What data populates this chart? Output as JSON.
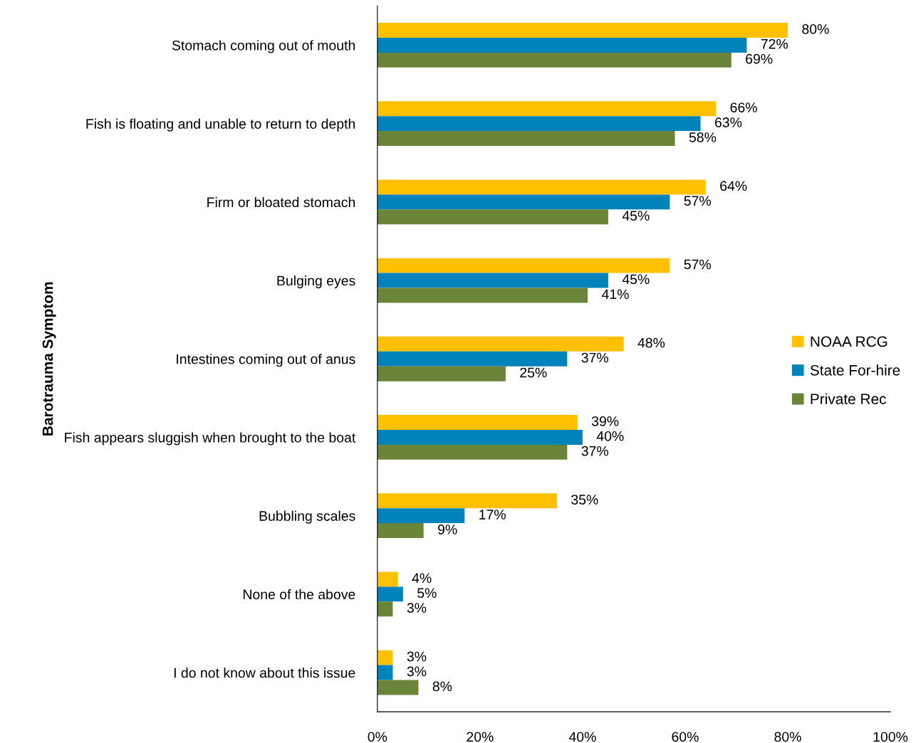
{
  "chart_data": {
    "type": "bar",
    "orientation": "horizontal",
    "ylabel": "Barotrauma Symptom",
    "categories": [
      "Stomach coming out of mouth",
      "Fish is floating and unable to return to depth",
      "Firm or bloated stomach",
      "Bulging eyes",
      "Intestines coming out of anus",
      "Fish appears sluggish when brought to the boat",
      "Bubbling scales",
      "None of the above",
      "I do not know about this issue"
    ],
    "series": [
      {
        "name": "NOAA RCG",
        "color": "#ffc000",
        "values": [
          80,
          66,
          64,
          57,
          48,
          39,
          35,
          4,
          3
        ],
        "value_labels": [
          "80%",
          "66%",
          "64%",
          "57%",
          "48%",
          "39%",
          "35%",
          "4%",
          "3%"
        ]
      },
      {
        "name": "State For-hire",
        "color": "#0082ba",
        "values": [
          72,
          63,
          57,
          45,
          37,
          40,
          17,
          5,
          3
        ],
        "value_labels": [
          "72%",
          "63%",
          "57%",
          "45%",
          "37%",
          "40%",
          "17%",
          "5%",
          "3%"
        ]
      },
      {
        "name": "Private Rec",
        "color": "#6a843a",
        "values": [
          69,
          58,
          45,
          41,
          25,
          37,
          9,
          3,
          8
        ],
        "value_labels": [
          "69%",
          "58%",
          "45%",
          "41%",
          "25%",
          "37%",
          "9%",
          "3%",
          "8%"
        ]
      }
    ],
    "xlim": [
      0,
      100
    ],
    "xticks": [
      {
        "value": 0,
        "label": "0%"
      },
      {
        "value": 20,
        "label": "20%"
      },
      {
        "value": 40,
        "label": "40%"
      },
      {
        "value": 60,
        "label": "60%"
      },
      {
        "value": 80,
        "label": "80%"
      },
      {
        "value": 100,
        "label": "100%"
      }
    ],
    "grid": false,
    "legend": "right"
  }
}
